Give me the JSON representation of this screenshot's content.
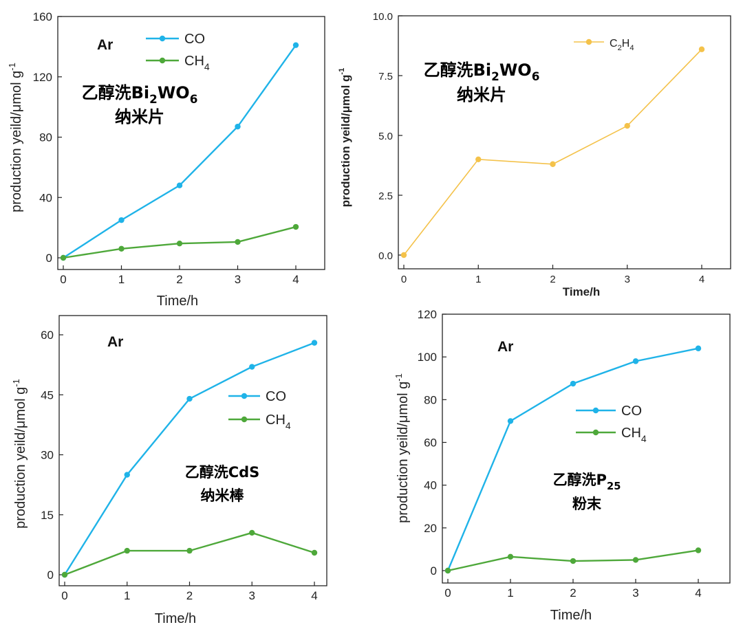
{
  "colors": {
    "co": "#1fb3e8",
    "ch4": "#4ea83a",
    "c2h4": "#f4c24a",
    "axis": "#222222"
  },
  "chart_data": [
    {
      "type": "line",
      "x": [
        0,
        1,
        2,
        3,
        4
      ],
      "xlabel": "Time/h",
      "ylabel": "production yeild/μmol g-1",
      "ylim": [
        0,
        160
      ],
      "yticks": [
        "0",
        "40",
        "80",
        "120",
        "160"
      ],
      "xticks": [
        "0",
        "1",
        "2",
        "3",
        "4"
      ],
      "series": [
        {
          "name": "CO",
          "values": [
            0,
            25,
            48,
            87,
            141
          ]
        },
        {
          "name": "CH4",
          "values": [
            0,
            6,
            9.5,
            10.5,
            20.5
          ]
        }
      ],
      "annotation_ar": "Ar",
      "annotation_line1": "乙醇洗Bi2WO6",
      "annotation_line2": "纳米片"
    },
    {
      "type": "line",
      "x": [
        0,
        1,
        2,
        3,
        4
      ],
      "xlabel": "Time/h",
      "ylabel": "production yeild/μmol g-1",
      "ylim": [
        0,
        10
      ],
      "yticks": [
        "0.0",
        "2.5",
        "5.0",
        "7.5",
        "10.0"
      ],
      "xticks": [
        "0",
        "1",
        "2",
        "3",
        "4"
      ],
      "series": [
        {
          "name": "C2H4",
          "values": [
            0,
            4.0,
            3.8,
            5.4,
            8.6
          ]
        }
      ],
      "annotation_line1": "乙醇洗Bi2WO6",
      "annotation_line2": "纳米片"
    },
    {
      "type": "line",
      "x": [
        0,
        1,
        2,
        3,
        4
      ],
      "xlabel": "Time/h",
      "ylabel": "production yeild/μmol g-1",
      "ylim": [
        0,
        60
      ],
      "yticks": [
        "0",
        "15",
        "30",
        "45",
        "60"
      ],
      "xticks": [
        "0",
        "1",
        "2",
        "3",
        "4"
      ],
      "series": [
        {
          "name": "CO",
          "values": [
            0,
            25,
            44,
            52,
            58
          ]
        },
        {
          "name": "CH4",
          "values": [
            0,
            6,
            6,
            10.5,
            5.5
          ]
        }
      ],
      "annotation_ar": "Ar",
      "annotation_line1": "乙醇洗CdS",
      "annotation_line2": "纳米棒"
    },
    {
      "type": "line",
      "x": [
        0,
        1,
        2,
        3,
        4
      ],
      "xlabel": "Time/h",
      "ylabel": "production yeild/μmol g-1",
      "ylim": [
        0,
        120
      ],
      "yticks": [
        "0",
        "20",
        "40",
        "60",
        "80",
        "100",
        "120"
      ],
      "xticks": [
        "0",
        "1",
        "2",
        "3",
        "4"
      ],
      "series": [
        {
          "name": "CO",
          "values": [
            0,
            70,
            87.5,
            98,
            104
          ]
        },
        {
          "name": "CH4",
          "values": [
            0,
            6.5,
            4.5,
            5,
            9.5
          ]
        }
      ],
      "annotation_ar": "Ar",
      "annotation_line1": "乙醇洗P25",
      "annotation_line2": "粉末"
    }
  ]
}
